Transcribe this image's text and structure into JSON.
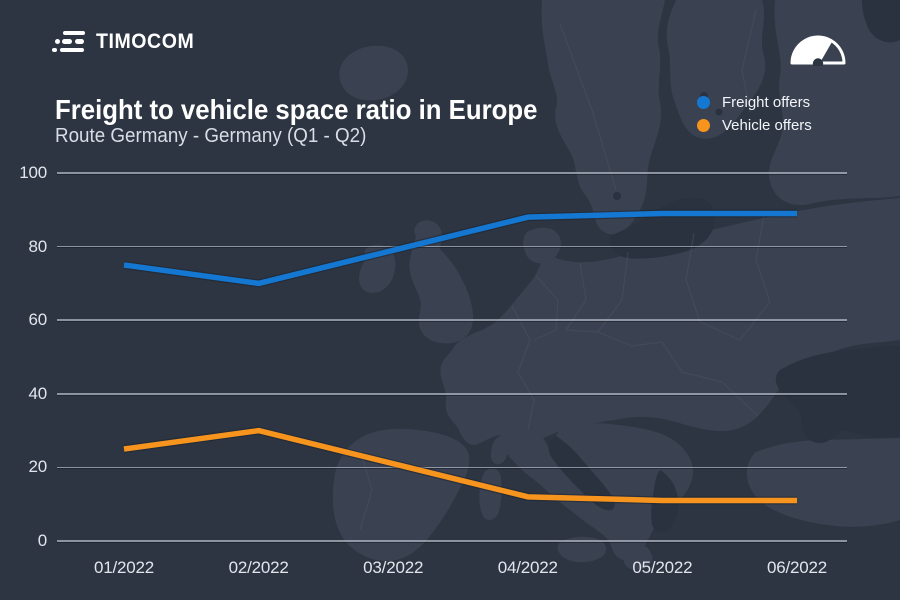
{
  "brand": {
    "logo_text": "TIMOCOM"
  },
  "header": {
    "title": "Freight to vehicle space ratio in Europe",
    "subtitle": "Route Germany - Germany (Q1 - Q2)"
  },
  "legend": {
    "items": [
      {
        "label": "Freight offers",
        "color": "#1478d2"
      },
      {
        "label": "Vehicle offers",
        "color": "#f7941e"
      }
    ]
  },
  "icons": {
    "logo_icon": "truck-speed-lines-icon",
    "header_icon": "speedometer-gauge-icon"
  },
  "colors": {
    "background": "#2d3542",
    "map_land": "#3a4150",
    "map_water_patch": "#2a3240",
    "gridline": "#c0c7d2",
    "title_text": "#ffffff",
    "subtitle_text": "#d9dee6",
    "axis_text": "#e2e5ec",
    "freight_line": "#1478d2",
    "vehicle_line": "#f7941e"
  },
  "chart_data": {
    "type": "line",
    "title": "Freight to vehicle space ratio in Europe",
    "subtitle": "Route Germany - Germany (Q1 - Q2)",
    "categories": [
      "01/2022",
      "02/2022",
      "03/2022",
      "04/2022",
      "05/2022",
      "06/2022"
    ],
    "series": [
      {
        "name": "Freight offers",
        "color": "#1478d2",
        "values": [
          75,
          70,
          79,
          88,
          89,
          89
        ]
      },
      {
        "name": "Vehicle offers",
        "color": "#f7941e",
        "values": [
          25,
          30,
          21,
          12,
          11,
          11
        ]
      }
    ],
    "ylim": [
      0,
      100
    ],
    "yticks": [
      0,
      20,
      40,
      60,
      80,
      100
    ],
    "grid": true,
    "legend_position": "top-right"
  }
}
